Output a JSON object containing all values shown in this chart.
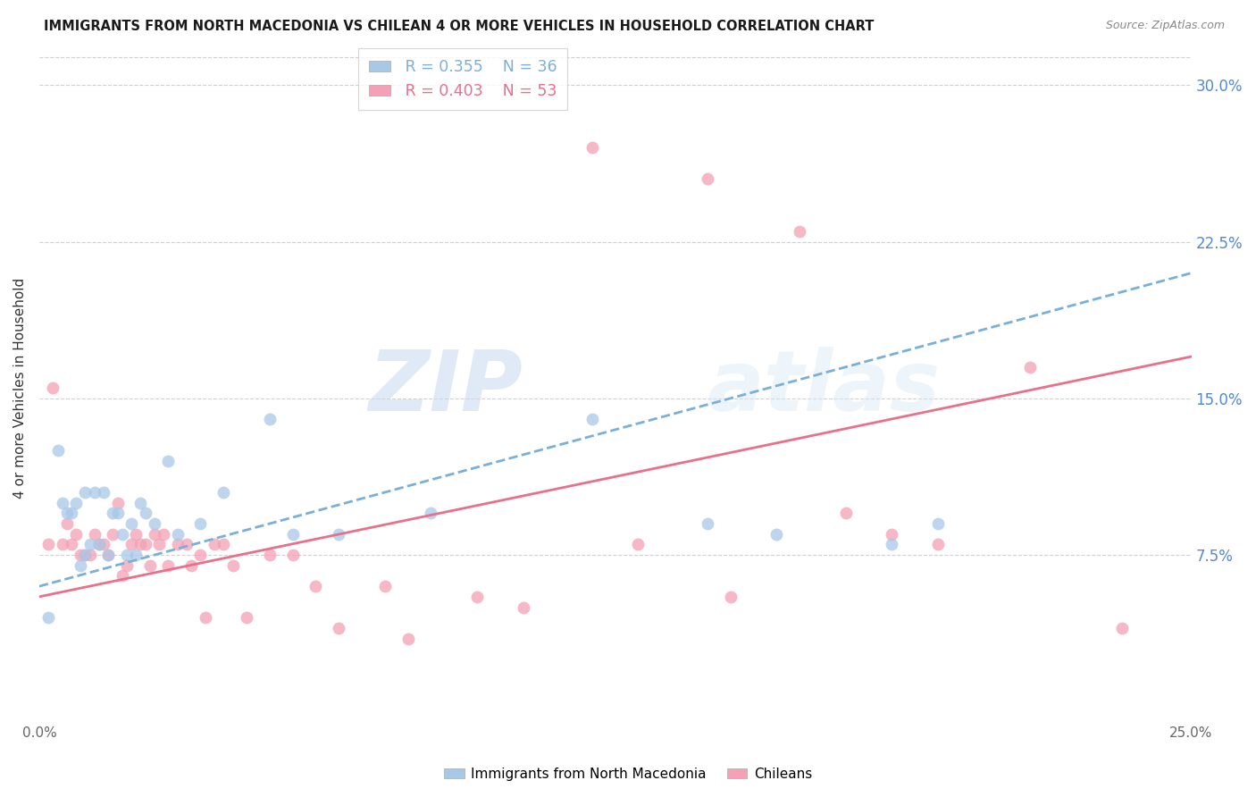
{
  "title": "IMMIGRANTS FROM NORTH MACEDONIA VS CHILEAN 4 OR MORE VEHICLES IN HOUSEHOLD CORRELATION CHART",
  "source": "Source: ZipAtlas.com",
  "ylabel": "4 or more Vehicles in Household",
  "ytick_labels": [
    "30.0%",
    "22.5%",
    "15.0%",
    "7.5%"
  ],
  "ytick_values": [
    0.3,
    0.225,
    0.15,
    0.075
  ],
  "xmin": 0.0,
  "xmax": 0.25,
  "ymin": -0.005,
  "ymax": 0.315,
  "legend1_r": "R = 0.355",
  "legend1_n": "N = 36",
  "legend2_r": "R = 0.403",
  "legend2_n": "N = 53",
  "color_blue": "#a8c8e8",
  "color_pink": "#f4a0b5",
  "line_blue": "#7ab0d8",
  "line_pink": "#e8708a",
  "watermark_zip": "ZIP",
  "watermark_atlas": "atlas",
  "blue_scatter_x": [
    0.002,
    0.004,
    0.005,
    0.006,
    0.007,
    0.008,
    0.009,
    0.01,
    0.01,
    0.011,
    0.012,
    0.013,
    0.014,
    0.015,
    0.016,
    0.017,
    0.018,
    0.019,
    0.02,
    0.021,
    0.022,
    0.023,
    0.025,
    0.028,
    0.03,
    0.035,
    0.04,
    0.05,
    0.055,
    0.065,
    0.085,
    0.12,
    0.145,
    0.16,
    0.185,
    0.195
  ],
  "blue_scatter_y": [
    0.045,
    0.125,
    0.1,
    0.095,
    0.095,
    0.1,
    0.07,
    0.075,
    0.105,
    0.08,
    0.105,
    0.08,
    0.105,
    0.075,
    0.095,
    0.095,
    0.085,
    0.075,
    0.09,
    0.075,
    0.1,
    0.095,
    0.09,
    0.12,
    0.085,
    0.09,
    0.105,
    0.14,
    0.085,
    0.085,
    0.095,
    0.14,
    0.09,
    0.085,
    0.08,
    0.09
  ],
  "pink_scatter_x": [
    0.002,
    0.003,
    0.005,
    0.006,
    0.007,
    0.008,
    0.009,
    0.01,
    0.011,
    0.012,
    0.013,
    0.014,
    0.015,
    0.016,
    0.017,
    0.018,
    0.019,
    0.02,
    0.021,
    0.022,
    0.023,
    0.024,
    0.025,
    0.026,
    0.027,
    0.028,
    0.03,
    0.032,
    0.033,
    0.035,
    0.036,
    0.038,
    0.04,
    0.042,
    0.045,
    0.05,
    0.055,
    0.06,
    0.065,
    0.075,
    0.08,
    0.095,
    0.105,
    0.12,
    0.13,
    0.145,
    0.15,
    0.165,
    0.175,
    0.185,
    0.195,
    0.215,
    0.235
  ],
  "pink_scatter_y": [
    0.08,
    0.155,
    0.08,
    0.09,
    0.08,
    0.085,
    0.075,
    0.075,
    0.075,
    0.085,
    0.08,
    0.08,
    0.075,
    0.085,
    0.1,
    0.065,
    0.07,
    0.08,
    0.085,
    0.08,
    0.08,
    0.07,
    0.085,
    0.08,
    0.085,
    0.07,
    0.08,
    0.08,
    0.07,
    0.075,
    0.045,
    0.08,
    0.08,
    0.07,
    0.045,
    0.075,
    0.075,
    0.06,
    0.04,
    0.06,
    0.035,
    0.055,
    0.05,
    0.27,
    0.08,
    0.255,
    0.055,
    0.23,
    0.095,
    0.085,
    0.08,
    0.165,
    0.04
  ],
  "blue_line_x0": 0.0,
  "blue_line_x1": 0.25,
  "blue_line_y0": 0.06,
  "blue_line_y1": 0.21,
  "pink_line_x0": 0.0,
  "pink_line_x1": 0.25,
  "pink_line_y0": 0.055,
  "pink_line_y1": 0.17
}
